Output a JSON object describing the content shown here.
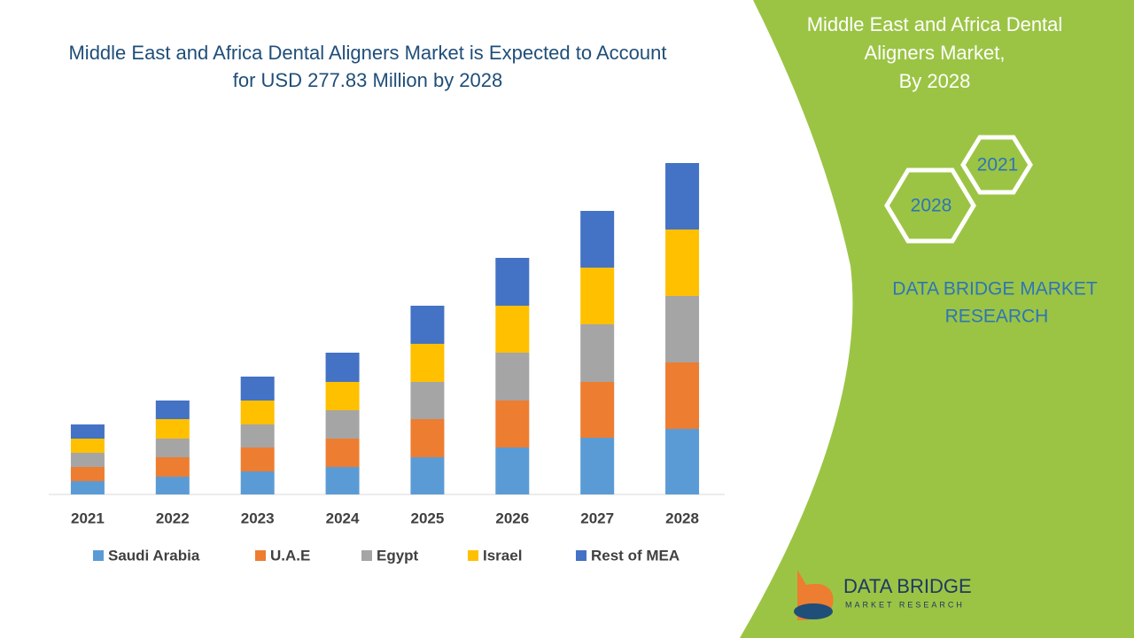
{
  "chart_data": {
    "type": "stacked_bar",
    "title": "Middle East and Africa Dental Aligners Market is Expected to Account for USD 277.83 Million by 2028",
    "categories": [
      "2021",
      "2022",
      "2023",
      "2024",
      "2025",
      "2026",
      "2027",
      "2028"
    ],
    "series": [
      {
        "name": "Saudi Arabia",
        "color": "#5b9bd5",
        "values": [
          15,
          20,
          26,
          31,
          42,
          53,
          64,
          74
        ]
      },
      {
        "name": "U.A.E",
        "color": "#ed7d31",
        "values": [
          16,
          22,
          27,
          32,
          43,
          53,
          63,
          75
        ]
      },
      {
        "name": "Egypt",
        "color": "#a5a5a5",
        "values": [
          16,
          21,
          26,
          32,
          42,
          54,
          65,
          75
        ]
      },
      {
        "name": "Israel",
        "color": "#ffc000",
        "values": [
          16,
          22,
          27,
          32,
          43,
          53,
          64,
          75
        ]
      },
      {
        "name": "Rest of MEA",
        "color": "#4472c4",
        "values": [
          16,
          21,
          27,
          33,
          43,
          54,
          64,
          75
        ]
      }
    ],
    "legend": "bottom"
  },
  "panel": {
    "title_lines": [
      "Middle East and Africa Dental",
      "Aligners Market,",
      "By 2028"
    ],
    "hexagons": [
      "2021",
      "2028"
    ],
    "brand_lines": [
      "DATA BRIDGE MARKET",
      "RESEARCH"
    ]
  },
  "logo": {
    "name": "DATA BRIDGE",
    "tagline": "MARKET RESEARCH"
  }
}
